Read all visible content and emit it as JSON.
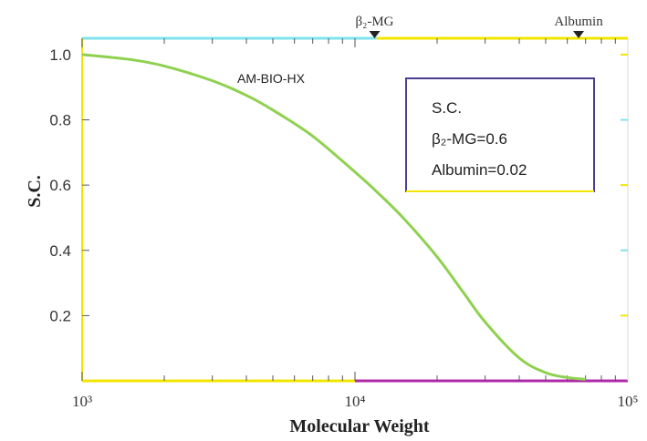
{
  "chart_data": {
    "type": "line",
    "title": "",
    "xlabel": "Molecular Weight",
    "ylabel": "S.C.",
    "xscale": "log",
    "xlim": [
      1000,
      100000
    ],
    "ylim": [
      0,
      1.05
    ],
    "x_ticks": [
      1000,
      10000,
      100000
    ],
    "x_tick_labels": [
      "10³",
      "10⁴",
      "10⁵"
    ],
    "y_ticks": [
      0.2,
      0.4,
      0.6,
      0.8,
      1.0
    ],
    "y_tick_labels": [
      "0.2",
      "0.4",
      "0.6",
      "0.8",
      "1.0"
    ],
    "grid": false,
    "series": [
      {
        "name": "AM-BIO-HX",
        "color": "#8fd14f",
        "x": [
          1000,
          1500,
          2000,
          3000,
          4000,
          5000,
          7000,
          10000,
          12000,
          15000,
          20000,
          25000,
          30000,
          40000,
          50000,
          60000,
          70000
        ],
        "y": [
          1.0,
          0.985,
          0.965,
          0.92,
          0.875,
          0.83,
          0.75,
          0.64,
          0.58,
          0.5,
          0.38,
          0.27,
          0.18,
          0.07,
          0.025,
          0.01,
          0.005
        ]
      }
    ],
    "markers": [
      {
        "label": "β₂-MG",
        "x": 11800
      },
      {
        "label": "Albumin",
        "x": 66000
      }
    ],
    "annotation_box": {
      "lines": [
        "S.C.",
        "β₂-MG=0.6",
        "Albumin=0.02"
      ]
    },
    "colors": {
      "top_axis": "#7fe3ee",
      "top_axis_right": "#f2e600",
      "bottom_axis": "#f2e600",
      "bottom_axis_right": "#b02aa8",
      "left_axis": "#f2e600",
      "box_border": "#4a3f8f",
      "box_border_bottom": "#f2e600",
      "curve": "#8fd14f"
    }
  }
}
